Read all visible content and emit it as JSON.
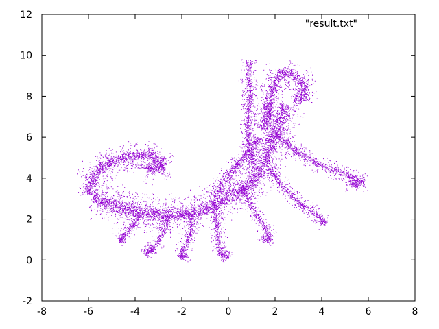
{
  "chart_data": {
    "type": "scatter",
    "title": "",
    "xlabel": "",
    "ylabel": "",
    "xlim": [
      -8,
      8
    ],
    "ylim": [
      -2,
      12
    ],
    "xticks": [
      -8,
      -6,
      -4,
      -2,
      0,
      2,
      4,
      6,
      8
    ],
    "yticks": [
      -2,
      0,
      2,
      4,
      6,
      8,
      10,
      12
    ],
    "grid": false,
    "legend_position": "top-right",
    "series": [
      {
        "name": "\"result.txt\"",
        "color": "#9400d3",
        "marker": "dot",
        "approx_point_count": 30000,
        "curves": [
          {
            "part": "main-spine",
            "points": [
              [
                -5.8,
                3.1
              ],
              [
                -4.8,
                2.6
              ],
              [
                -3.6,
                2.3
              ],
              [
                -2.4,
                2.2
              ],
              [
                -1.2,
                2.4
              ],
              [
                -0.2,
                3.0
              ],
              [
                0.6,
                3.4
              ],
              [
                1.2,
                4.1
              ],
              [
                1.6,
                5.0
              ],
              [
                1.9,
                6.0
              ],
              [
                2.2,
                6.9
              ],
              [
                2.5,
                7.6
              ]
            ],
            "width": 0.5
          },
          {
            "part": "left-spiral",
            "points": [
              [
                -5.9,
                3.2
              ],
              [
                -6.0,
                3.8
              ],
              [
                -5.5,
                4.5
              ],
              [
                -4.6,
                5.0
              ],
              [
                -3.7,
                5.2
              ],
              [
                -3.0,
                5.0
              ],
              [
                -2.8,
                4.6
              ],
              [
                -3.1,
                4.35
              ],
              [
                -3.5,
                4.45
              ],
              [
                -3.5,
                4.7
              ]
            ],
            "width": 0.4
          },
          {
            "part": "upper-curl",
            "points": [
              [
                1.5,
                6.4
              ],
              [
                1.7,
                7.5
              ],
              [
                1.9,
                8.6
              ],
              [
                2.3,
                9.3
              ],
              [
                2.9,
                9.0
              ],
              [
                3.3,
                8.4
              ],
              [
                3.15,
                7.8
              ],
              [
                2.8,
                7.9
              ]
            ],
            "width": 0.35
          },
          {
            "part": "right-branch",
            "points": [
              [
                2.0,
                6.2
              ],
              [
                3.0,
                5.2
              ],
              [
                4.0,
                4.6
              ],
              [
                5.0,
                4.2
              ],
              [
                5.8,
                3.8
              ],
              [
                5.4,
                3.6
              ],
              [
                5.2,
                3.9
              ]
            ],
            "width": 0.25
          },
          {
            "part": "lower-right-branch",
            "points": [
              [
                1.7,
                4.6
              ],
              [
                2.3,
                3.6
              ],
              [
                3.1,
                2.7
              ],
              [
                3.8,
                2.2
              ],
              [
                4.2,
                1.8
              ],
              [
                3.9,
                1.9
              ]
            ],
            "width": 0.2
          },
          {
            "part": "inner-branch",
            "points": [
              [
                0.6,
                3.6
              ],
              [
                1.0,
                2.6
              ],
              [
                1.4,
                1.8
              ],
              [
                1.8,
                1.1
              ],
              [
                1.6,
                0.9
              ],
              [
                1.5,
                1.2
              ]
            ],
            "width": 0.2
          },
          {
            "part": "drooping-tendril-1",
            "points": [
              [
                -0.6,
                2.7
              ],
              [
                -0.5,
                1.6
              ],
              [
                -0.4,
                0.4
              ],
              [
                0.0,
                0.1
              ],
              [
                -0.3,
                0.3
              ]
            ],
            "width": 0.2
          },
          {
            "part": "drooping-tendril-2",
            "points": [
              [
                -1.6,
                2.3
              ],
              [
                -1.6,
                1.3
              ],
              [
                -2.0,
                0.4
              ],
              [
                -2.1,
                0.1
              ],
              [
                -1.8,
                0.3
              ]
            ],
            "width": 0.2
          },
          {
            "part": "drooping-tendril-3",
            "points": [
              [
                -2.6,
                2.2
              ],
              [
                -2.8,
                1.3
              ],
              [
                -3.2,
                0.6
              ],
              [
                -3.6,
                0.3
              ],
              [
                -3.3,
                0.6
              ]
            ],
            "width": 0.2
          },
          {
            "part": "drooping-tendril-4",
            "points": [
              [
                -3.8,
                2.3
              ],
              [
                -4.2,
                1.5
              ],
              [
                -4.7,
                1.0
              ],
              [
                -4.4,
                1.0
              ]
            ],
            "width": 0.2
          },
          {
            "part": "upper-left-fronds",
            "points": [
              [
                -0.6,
                3.1
              ],
              [
                -0.2,
                3.9
              ],
              [
                0.3,
                4.6
              ],
              [
                0.8,
                5.2
              ],
              [
                1.3,
                6.0
              ]
            ],
            "width": 0.25
          },
          {
            "part": "top-branch",
            "points": [
              [
                1.1,
                4.4
              ],
              [
                0.9,
                5.6
              ],
              [
                0.8,
                6.6
              ],
              [
                0.9,
                7.6
              ],
              [
                0.9,
                8.4
              ],
              [
                0.8,
                9.2
              ],
              [
                0.9,
                9.8
              ]
            ],
            "width": 0.2
          }
        ]
      }
    ]
  }
}
